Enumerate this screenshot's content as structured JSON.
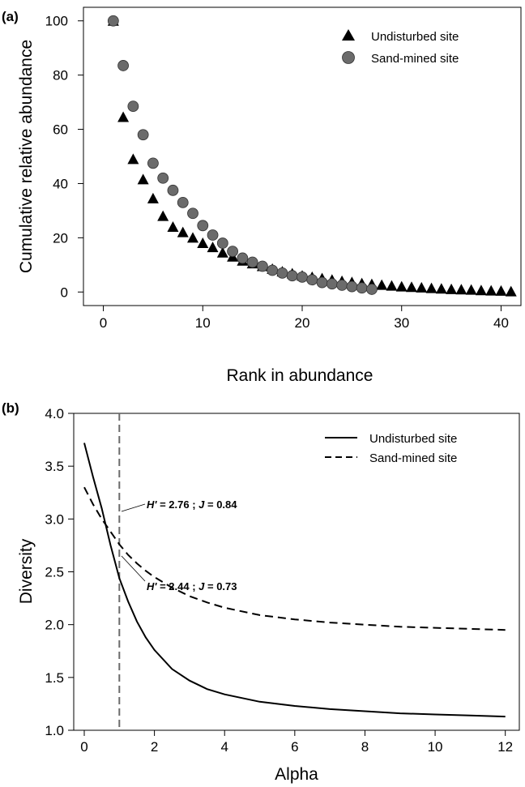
{
  "chart_data": [
    {
      "panel": "(a)",
      "type": "scatter",
      "xlabel": "Rank in abundance",
      "ylabel": "Cumulative relative abundance",
      "xlim": [
        -2,
        42
      ],
      "ylim": [
        -5,
        105
      ],
      "xticks": [
        0,
        10,
        20,
        30,
        40
      ],
      "yticks": [
        0,
        20,
        40,
        60,
        80,
        100
      ],
      "legend_position": "top-right",
      "grid": false,
      "series": [
        {
          "name": "Undisturbed site",
          "marker": "triangle",
          "color": "#000000",
          "x": [
            1,
            2,
            3,
            4,
            5,
            6,
            7,
            8,
            9,
            10,
            11,
            12,
            13,
            14,
            15,
            16,
            17,
            18,
            19,
            20,
            21,
            22,
            23,
            24,
            25,
            26,
            27,
            28,
            29,
            30,
            31,
            32,
            33,
            34,
            35,
            36,
            37,
            38,
            39,
            40,
            41
          ],
          "y": [
            100,
            64.5,
            49,
            41.5,
            34.5,
            28,
            24,
            22,
            20,
            18,
            16.5,
            14.5,
            13,
            11.5,
            10.5,
            9.5,
            8.5,
            7.5,
            6.8,
            6,
            5.5,
            5,
            4.5,
            4,
            3.6,
            3.2,
            2.9,
            2.6,
            2.3,
            2,
            1.8,
            1.6,
            1.4,
            1.2,
            1,
            0.9,
            0.8,
            0.6,
            0.5,
            0.4,
            0.2
          ]
        },
        {
          "name": "Sand-mined site",
          "marker": "circle",
          "color": "#6b6b6b",
          "x": [
            1,
            2,
            3,
            4,
            5,
            6,
            7,
            8,
            9,
            10,
            11,
            12,
            13,
            14,
            15,
            16,
            17,
            18,
            19,
            20,
            21,
            22,
            23,
            24,
            25,
            26,
            27
          ],
          "y": [
            100,
            83.5,
            68.5,
            58,
            47.5,
            42,
            37.5,
            33,
            29,
            24.5,
            21,
            18,
            15,
            12.5,
            11,
            9.5,
            8,
            7,
            6,
            5.5,
            4.5,
            3.5,
            3,
            2.5,
            2,
            1.5,
            1
          ]
        }
      ]
    },
    {
      "panel": "(b)",
      "type": "line",
      "xlabel": "Alpha",
      "ylabel": "Diversity",
      "xlim": [
        -0.3,
        12.4
      ],
      "ylim": [
        1.0,
        4.0
      ],
      "xticks": [
        0,
        2,
        4,
        6,
        8,
        10,
        12
      ],
      "yticks": [
        "1.0",
        "1.5",
        "2.0",
        "2.5",
        "3.0",
        "3.5",
        "4.0"
      ],
      "legend_position": "top-right",
      "grid": false,
      "reference_line_x": 1,
      "series": [
        {
          "name": "Undisturbed site",
          "style": "solid",
          "color": "#000000",
          "x": [
            0,
            0.25,
            0.5,
            0.75,
            1,
            1.25,
            1.5,
            1.75,
            2,
            2.5,
            3,
            3.5,
            4,
            5,
            6,
            7,
            8,
            9,
            10,
            11,
            12
          ],
          "y": [
            3.72,
            3.4,
            3.1,
            2.75,
            2.44,
            2.22,
            2.03,
            1.88,
            1.76,
            1.58,
            1.47,
            1.39,
            1.34,
            1.27,
            1.23,
            1.2,
            1.18,
            1.16,
            1.15,
            1.14,
            1.13
          ]
        },
        {
          "name": "Sand-mined site",
          "style": "dashed",
          "color": "#000000",
          "x": [
            0,
            0.25,
            0.5,
            0.75,
            1,
            1.25,
            1.5,
            1.75,
            2,
            2.5,
            3,
            3.5,
            4,
            5,
            6,
            7,
            8,
            9,
            10,
            11,
            12
          ],
          "y": [
            3.3,
            3.14,
            3.0,
            2.88,
            2.76,
            2.66,
            2.58,
            2.51,
            2.45,
            2.35,
            2.27,
            2.21,
            2.16,
            2.09,
            2.05,
            2.02,
            2.0,
            1.98,
            1.97,
            1.96,
            1.95
          ]
        }
      ],
      "annotations": [
        {
          "h_label": "H'",
          "h_value": " = 2.76 ; ",
          "j_label": "J",
          "j_value": " = 0.84",
          "point": [
            1,
            2.76
          ]
        },
        {
          "h_label": "H'",
          "h_value": " = 2.44 ; ",
          "j_label": "J",
          "j_value": " = 0.73",
          "point": [
            1,
            2.44
          ]
        }
      ]
    }
  ]
}
